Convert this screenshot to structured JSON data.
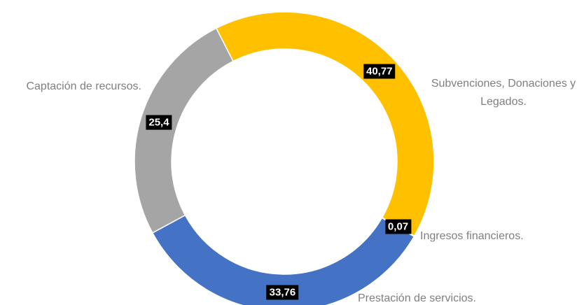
{
  "chart_data": {
    "type": "donut",
    "categories": [
      "Subvenciones, Donaciones y Legados.",
      "Ingresos financieros.",
      "Prestación de servicios.",
      "Captación de recursos."
    ],
    "values": [
      40.77,
      0.07,
      33.76,
      25.4
    ],
    "value_labels": [
      "40,77",
      "0,07",
      "33,76",
      "25,4"
    ],
    "colors": [
      "#FFC000",
      "#ED7D31",
      "#4472C4",
      "#A5A5A5"
    ]
  }
}
